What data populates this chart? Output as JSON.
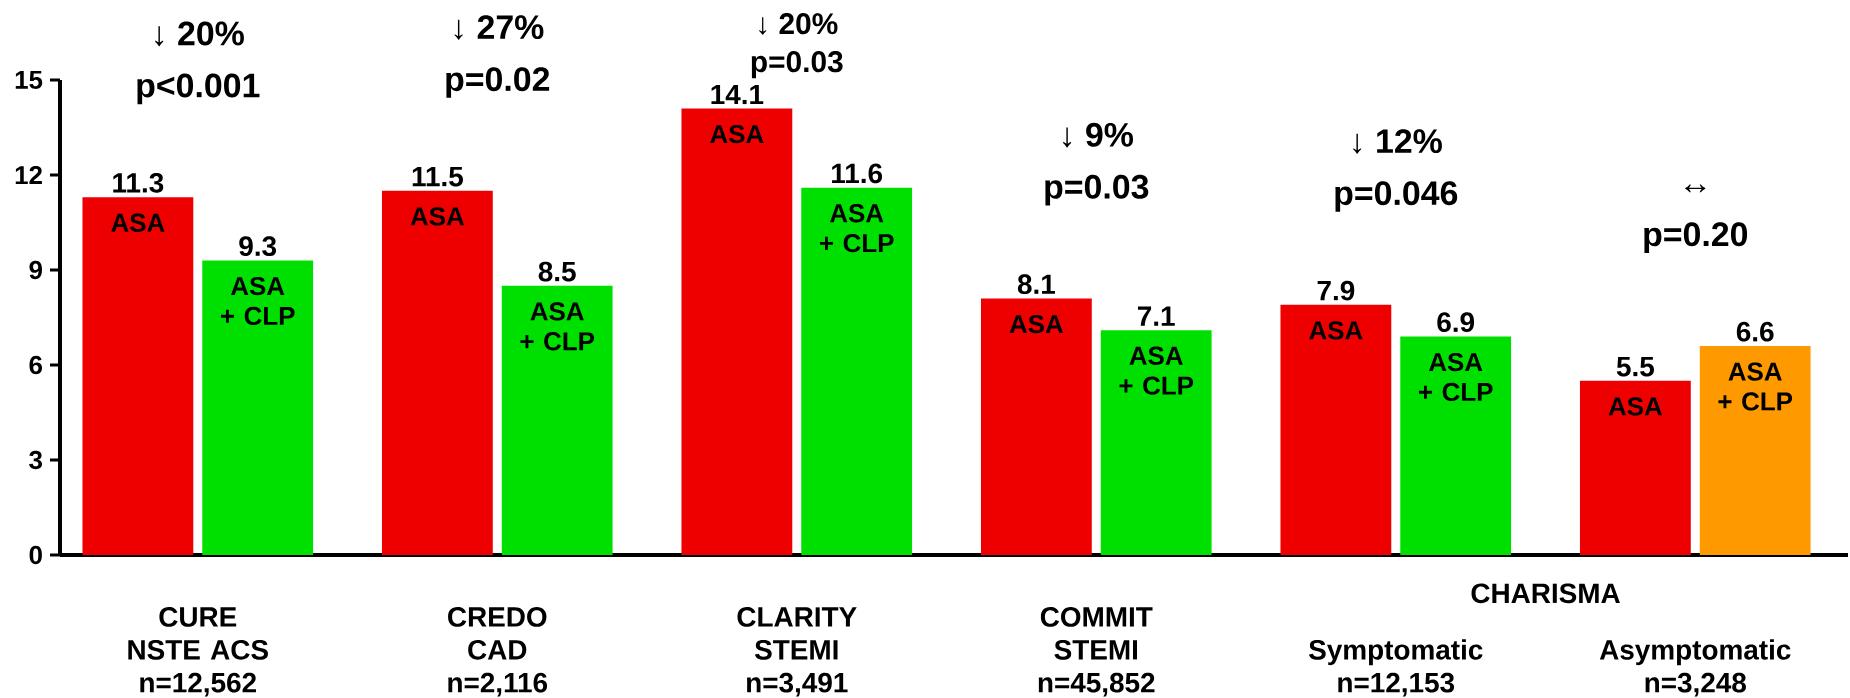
{
  "chart_data": {
    "type": "bar",
    "categories": [
      "CURE\nNSTE ACS\nn=12,562",
      "CREDO\nCAD\nn=2,116",
      "CLARITY\nSTEMI\nn=3,491",
      "COMMIT\nSTEMI\nn=45,852",
      "Symptomatic\nn=12,153",
      "Asymptomatic\nn=3,248"
    ],
    "series": [
      {
        "name": "ASA",
        "color": "#ee0000",
        "values": [
          11.3,
          11.5,
          14.1,
          8.1,
          7.9,
          5.5
        ]
      },
      {
        "name": "ASA + CLP",
        "colors": [
          "#00e000",
          "#00e000",
          "#00e000",
          "#00e000",
          "#00e000",
          "#ff9900"
        ],
        "values": [
          9.3,
          8.5,
          11.6,
          7.1,
          6.9,
          6.6
        ]
      }
    ],
    "ylim": [
      0,
      15
    ],
    "yticks": [
      0,
      3,
      6,
      9,
      12,
      15
    ],
    "data_labels": true,
    "annotations": [
      "↓ 20%",
      "p<0.001",
      "↓ 27%",
      "p=0.02",
      "↓ 20%",
      "p=0.03",
      "↓ 9%",
      "p=0.03",
      "↓ 12%",
      "p=0.046",
      "↔",
      "p=0.20",
      "CHARISMA"
    ]
  }
}
